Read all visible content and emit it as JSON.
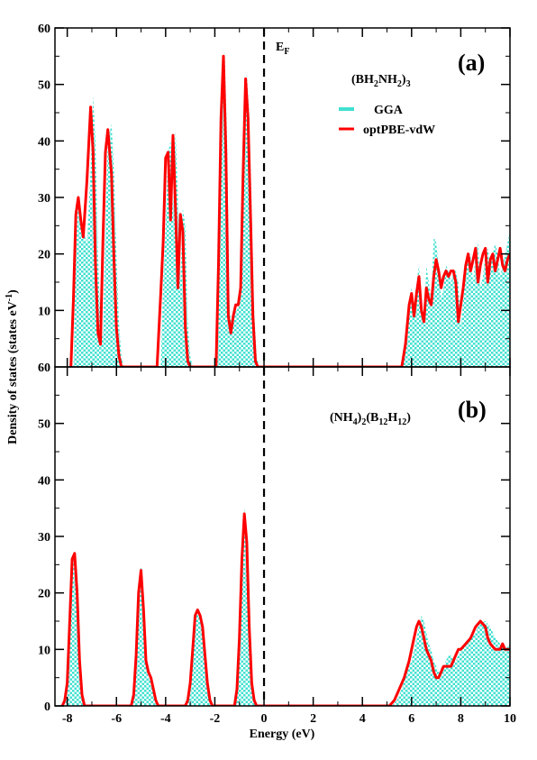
{
  "chart_data": [
    {
      "panel": "(a)",
      "type": "area",
      "compound": {
        "base": "(BH",
        "parts": [
          {
            "t": "(BH",
            "sub": false
          },
          {
            "t": "2",
            "sub": true
          },
          {
            "t": "NH",
            "sub": false
          },
          {
            "t": "2",
            "sub": true
          },
          {
            "t": ")",
            "sub": false
          },
          {
            "t": "3",
            "sub": true
          }
        ]
      },
      "xlim": [
        -8.5,
        10
      ],
      "ylim": [
        0,
        60
      ],
      "yticks": [
        10,
        20,
        30,
        40,
        50,
        60
      ],
      "ytick_labels": [
        "10",
        "20",
        "30",
        "40",
        "50",
        "60"
      ],
      "ybottom_label": "60",
      "fermi_level": 0,
      "fermi_label": {
        "main": "E",
        "sub": "F"
      },
      "legend": [
        {
          "name": "GGA",
          "color": "#40e0d0",
          "style": "checker-fill"
        },
        {
          "name": "optPBE-vdW",
          "color": "#ff0000",
          "style": "line"
        }
      ],
      "series": [
        {
          "name": "GGA",
          "x": [
            -7.75,
            -7.65,
            -7.55,
            -7.45,
            -7.35,
            -7.2,
            -7.05,
            -6.95,
            -6.85,
            -6.75,
            -6.65,
            -6.55,
            -6.45,
            -6.35,
            -6.2,
            -6.1,
            -6.0,
            -5.9,
            -5.8,
            -5.7,
            -5.6,
            -5.5,
            -4.2,
            -4.1,
            -4.0,
            -3.9,
            -3.8,
            -3.7,
            -3.6,
            -3.5,
            -3.4,
            -3.3,
            -3.2,
            -3.1,
            -3.0,
            -2.9,
            -1.9,
            -1.8,
            -1.7,
            -1.6,
            -1.5,
            -1.4,
            -1.3,
            -1.2,
            -1.1,
            -1.0,
            -0.9,
            -0.8,
            -0.7,
            -0.6,
            -0.5,
            -0.4,
            -0.3,
            -0.2,
            5.6,
            5.75,
            5.9,
            6.0,
            6.1,
            6.2,
            6.3,
            6.4,
            6.5,
            6.6,
            6.7,
            6.8,
            6.9,
            7.0,
            7.1,
            7.2,
            7.3,
            7.4,
            7.5,
            7.6,
            7.7,
            7.8,
            7.9,
            8.0,
            8.1,
            8.2,
            8.3,
            8.4,
            8.5,
            8.6,
            8.7,
            8.8,
            8.9,
            9.0,
            9.1,
            9.2,
            9.3,
            9.4,
            9.5,
            9.6,
            9.7,
            9.8,
            9.9,
            10.0
          ],
          "y": [
            0,
            20,
            30,
            28,
            24,
            22,
            35,
            48,
            40,
            20,
            8,
            5,
            25,
            40,
            43,
            35,
            20,
            8,
            2,
            0,
            0,
            0,
            0,
            15,
            25,
            38,
            40,
            28,
            42,
            30,
            15,
            28,
            25,
            8,
            2,
            0,
            0,
            20,
            45,
            56,
            40,
            10,
            7,
            10,
            10,
            12,
            15,
            35,
            52,
            45,
            28,
            10,
            2,
            0,
            0,
            5,
            12,
            14,
            10,
            15,
            18,
            12,
            8,
            18,
            15,
            12,
            23,
            22,
            18,
            12,
            14,
            18,
            17,
            15,
            17,
            17,
            15,
            7,
            12,
            16,
            20,
            20,
            15,
            20,
            22,
            14,
            16,
            20,
            21,
            18,
            20,
            22,
            20,
            16,
            18,
            20,
            22,
            24
          ]
        },
        {
          "name": "optPBE-vdW",
          "x": [
            -7.85,
            -7.75,
            -7.65,
            -7.55,
            -7.45,
            -7.35,
            -7.2,
            -7.05,
            -6.95,
            -6.85,
            -6.75,
            -6.65,
            -6.55,
            -6.45,
            -6.35,
            -6.2,
            -6.1,
            -6.0,
            -5.9,
            -5.8,
            -5.7,
            -5.6,
            -4.35,
            -4.2,
            -4.1,
            -4.0,
            -3.9,
            -3.8,
            -3.7,
            -3.6,
            -3.5,
            -3.4,
            -3.3,
            -3.2,
            -3.1,
            -3.0,
            -2.9,
            -2.8,
            -1.95,
            -1.85,
            -1.75,
            -1.65,
            -1.55,
            -1.45,
            -1.35,
            -1.25,
            -1.15,
            -1.05,
            -0.95,
            -0.85,
            -0.75,
            -0.65,
            -0.55,
            -0.45,
            -0.35,
            -0.25,
            5.6,
            5.75,
            5.9,
            6.0,
            6.1,
            6.2,
            6.3,
            6.4,
            6.5,
            6.6,
            6.7,
            6.8,
            6.9,
            7.0,
            7.1,
            7.2,
            7.3,
            7.4,
            7.5,
            7.6,
            7.7,
            7.8,
            7.9,
            8.0,
            8.1,
            8.2,
            8.3,
            8.4,
            8.5,
            8.6,
            8.7,
            8.8,
            8.9,
            9.0,
            9.1,
            9.2,
            9.3,
            9.4,
            9.5,
            9.6,
            9.7,
            9.8,
            9.9,
            10.0
          ],
          "y": [
            0,
            12,
            27,
            30,
            26,
            23,
            33,
            46,
            38,
            18,
            6,
            4,
            22,
            38,
            42,
            34,
            19,
            7,
            2,
            0,
            0,
            0,
            0,
            13,
            22,
            37,
            38,
            26,
            41,
            28,
            14,
            27,
            24,
            7,
            1,
            0,
            0,
            0,
            0,
            18,
            44,
            55,
            38,
            9,
            6,
            9,
            11,
            11,
            14,
            34,
            51,
            44,
            27,
            9,
            1,
            0,
            0,
            4,
            11,
            13,
            9,
            13,
            16,
            10,
            8,
            14,
            12,
            11,
            16,
            19,
            17,
            14,
            16,
            17,
            16,
            17,
            17,
            15,
            8,
            11,
            14,
            18,
            20,
            17,
            19,
            21,
            15,
            18,
            20,
            21,
            15,
            19,
            20,
            17,
            19,
            21,
            18,
            17,
            19,
            20
          ]
        }
      ]
    },
    {
      "panel": "(b)",
      "type": "area",
      "compound": {
        "parts": [
          {
            "t": "(NH",
            "sub": false
          },
          {
            "t": "4",
            "sub": true
          },
          {
            "t": ")",
            "sub": false
          },
          {
            "t": "2",
            "sub": true
          },
          {
            "t": "(B",
            "sub": false
          },
          {
            "t": "12",
            "sub": true
          },
          {
            "t": "H",
            "sub": false
          },
          {
            "t": "12",
            "sub": true
          },
          {
            "t": ")",
            "sub": false
          }
        ]
      },
      "xlim": [
        -8.5,
        10
      ],
      "ylim": [
        0,
        60
      ],
      "yticks": [
        0,
        10,
        20,
        30,
        40,
        50
      ],
      "ytick_labels": [
        "0",
        "10",
        "20",
        "30",
        "40",
        "50"
      ],
      "xticks": [
        -8,
        -6,
        -4,
        -2,
        0,
        2,
        4,
        6,
        8,
        10
      ],
      "xtick_labels": [
        "-8",
        "-6",
        "-4",
        "-2",
        "0",
        "2",
        "4",
        "6",
        "8",
        "10"
      ],
      "xlabel": "Energy (eV)",
      "fermi_level": 0,
      "series": [
        {
          "name": "GGA",
          "x": [
            -8.1,
            -8.0,
            -7.9,
            -7.8,
            -7.7,
            -7.6,
            -7.5,
            -7.4,
            -7.3,
            -5.4,
            -5.3,
            -5.2,
            -5.1,
            -5.0,
            -4.9,
            -4.8,
            -4.7,
            -4.6,
            -4.5,
            -4.4,
            -4.3,
            -4.2,
            -3.1,
            -3.0,
            -2.9,
            -2.8,
            -2.7,
            -2.6,
            -2.5,
            -2.4,
            -2.3,
            -2.2,
            -2.1,
            -2.0,
            -1.2,
            -1.1,
            -1.0,
            -0.9,
            -0.8,
            -0.7,
            -0.6,
            -0.5,
            -0.4,
            -0.3,
            5.2,
            5.4,
            5.6,
            5.8,
            6.0,
            6.2,
            6.3,
            6.4,
            6.5,
            6.6,
            6.7,
            6.8,
            6.9,
            7.0,
            7.1,
            7.2,
            7.3,
            7.4,
            7.5,
            7.6,
            7.7,
            7.8,
            7.9,
            8.0,
            8.2,
            8.4,
            8.6,
            8.8,
            9.0,
            9.2,
            9.4,
            9.6,
            9.8,
            10.0
          ],
          "y": [
            0,
            2,
            10,
            25,
            27,
            22,
            10,
            2,
            0,
            0,
            2,
            10,
            22,
            25,
            18,
            8,
            5,
            5,
            3,
            1,
            0,
            0,
            0,
            3,
            10,
            16,
            17,
            16,
            14,
            10,
            4,
            1,
            0,
            0,
            0,
            5,
            14,
            28,
            35,
            30,
            15,
            4,
            1,
            0,
            0,
            1,
            3,
            6,
            8,
            12,
            14,
            16,
            15,
            13,
            11,
            10,
            8,
            7,
            6,
            6,
            7,
            8,
            9,
            9,
            8,
            8,
            9,
            10,
            11,
            12,
            13,
            15,
            15,
            14,
            12,
            11,
            10,
            11
          ]
        },
        {
          "name": "optPBE-vdW",
          "x": [
            -8.2,
            -8.1,
            -8.0,
            -7.9,
            -7.8,
            -7.7,
            -7.6,
            -7.5,
            -7.4,
            -7.3,
            -5.4,
            -5.3,
            -5.2,
            -5.1,
            -5.0,
            -4.9,
            -4.8,
            -4.7,
            -4.6,
            -4.5,
            -4.4,
            -4.3,
            -4.2,
            -3.2,
            -3.1,
            -3.0,
            -2.9,
            -2.8,
            -2.7,
            -2.6,
            -2.5,
            -2.4,
            -2.3,
            -2.2,
            -2.1,
            -2.0,
            -1.2,
            -1.1,
            -1.0,
            -0.9,
            -0.8,
            -0.7,
            -0.6,
            -0.5,
            -0.4,
            -0.3,
            5.1,
            5.3,
            5.5,
            5.7,
            5.9,
            6.1,
            6.2,
            6.3,
            6.4,
            6.5,
            6.6,
            6.7,
            6.8,
            6.9,
            7.0,
            7.1,
            7.2,
            7.3,
            7.4,
            7.5,
            7.6,
            7.7,
            7.8,
            7.9,
            8.0,
            8.2,
            8.4,
            8.6,
            8.8,
            9.0,
            9.1,
            9.2,
            9.4,
            9.6,
            9.7,
            9.8,
            10.0
          ],
          "y": [
            0,
            1,
            4,
            15,
            26,
            27,
            20,
            8,
            2,
            0,
            0,
            2,
            9,
            20,
            24,
            17,
            8,
            6,
            5,
            3,
            1,
            0,
            0,
            0,
            1,
            4,
            10,
            16,
            17,
            16,
            14,
            9,
            4,
            1,
            0,
            0,
            0,
            3,
            12,
            26,
            34,
            29,
            14,
            4,
            1,
            0,
            0,
            1,
            3,
            5,
            8,
            12,
            14,
            15,
            14,
            12,
            10,
            9,
            8,
            6,
            5,
            5,
            6,
            7,
            7,
            7,
            7,
            8,
            9,
            10,
            10,
            11,
            12,
            14,
            15,
            14,
            12,
            11,
            10,
            10,
            11,
            10,
            10
          ]
        }
      ]
    }
  ],
  "ylabel_parts": [
    {
      "t": "Density of states (states eV",
      "sup": false
    },
    {
      "t": "-1",
      "sup": true
    },
    {
      "t": ")",
      "sup": false
    }
  ]
}
